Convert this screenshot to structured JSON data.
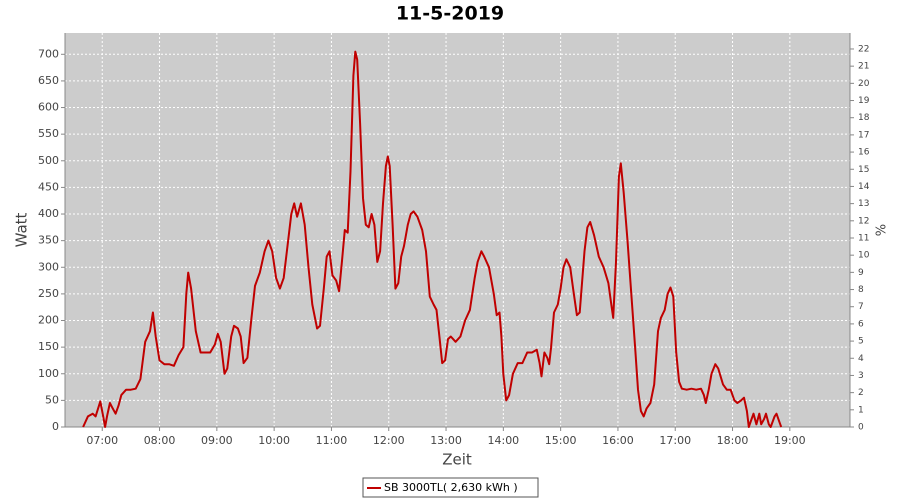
{
  "chart_data": {
    "type": "line",
    "title": "11-5-2019",
    "xlabel": "Zeit",
    "ylabel": "Watt",
    "y2label": "%",
    "x": [
      400,
      405,
      410,
      413,
      418,
      421,
      423,
      425,
      428,
      431,
      434,
      437,
      440,
      445,
      450,
      455,
      460,
      465,
      470,
      473,
      476,
      480,
      485,
      490,
      495,
      500,
      505,
      508,
      510,
      513,
      518,
      523,
      528,
      533,
      538,
      541,
      544,
      548,
      551,
      555,
      558,
      562,
      565,
      568,
      572,
      576,
      580,
      585,
      590,
      594,
      598,
      602,
      606,
      610,
      614,
      618,
      621,
      624,
      628,
      632,
      636,
      640,
      645,
      648,
      652,
      655,
      658,
      661,
      665,
      668,
      671,
      674,
      677,
      680,
      683,
      685,
      687,
      690,
      693,
      696,
      699,
      702,
      705,
      708,
      711,
      714,
      717,
      719,
      721,
      724,
      727,
      730,
      733,
      736,
      740,
      743,
      746,
      750,
      755,
      759,
      763,
      767,
      770,
      773,
      776,
      779,
      782,
      785,
      790,
      795,
      800,
      805,
      810,
      813,
      817,
      820,
      825,
      830,
      833,
      836,
      838,
      840,
      843,
      846,
      850,
      855,
      860,
      865,
      870,
      875,
      878,
      880,
      883,
      886,
      888,
      890,
      893,
      897,
      900,
      903,
      906,
      910,
      913,
      917,
      920,
      925,
      928,
      931,
      935,
      940,
      945,
      950,
      953,
      955,
      958,
      961,
      963,
      966,
      970,
      974,
      978,
      981,
      984,
      987,
      990,
      994,
      998,
      1002,
      1005,
      1009,
      1012,
      1015,
      1018,
      1021,
      1024,
      1027,
      1032,
      1037,
      1042,
      1047,
      1050,
      1052,
      1055,
      1058,
      1062,
      1065,
      1070,
      1074,
      1078,
      1082,
      1085,
      1089,
      1092,
      1095,
      1097,
      1100,
      1102,
      1105,
      1108,
      1110,
      1113,
      1115,
      1118,
      1120,
      1124,
      1126,
      1129,
      1131
    ],
    "series": [
      {
        "name": "SB 3000TL( 2,630 kWh )",
        "color": "#c00000",
        "values": [
          0,
          20,
          25,
          20,
          48,
          20,
          0,
          20,
          45,
          35,
          25,
          40,
          60,
          70,
          70,
          72,
          90,
          160,
          180,
          215,
          170,
          125,
          118,
          118,
          115,
          135,
          150,
          250,
          290,
          260,
          180,
          140,
          140,
          140,
          155,
          175,
          160,
          100,
          110,
          170,
          190,
          185,
          170,
          120,
          130,
          200,
          265,
          290,
          330,
          350,
          330,
          280,
          260,
          280,
          340,
          400,
          420,
          395,
          420,
          380,
          300,
          230,
          185,
          190,
          260,
          320,
          330,
          285,
          275,
          255,
          310,
          370,
          365,
          480,
          660,
          705,
          690,
          570,
          430,
          380,
          375,
          400,
          380,
          310,
          330,
          420,
          490,
          508,
          490,
          380,
          260,
          270,
          320,
          340,
          380,
          400,
          405,
          395,
          370,
          330,
          245,
          230,
          220,
          170,
          120,
          125,
          165,
          170,
          160,
          170,
          200,
          220,
          280,
          310,
          330,
          320,
          300,
          250,
          210,
          215,
          170,
          100,
          50,
          60,
          100,
          120,
          120,
          140,
          140,
          145,
          120,
          95,
          140,
          130,
          118,
          150,
          215,
          230,
          260,
          300,
          315,
          300,
          260,
          210,
          215,
          330,
          375,
          385,
          360,
          320,
          300,
          270,
          230,
          205,
          310,
          470,
          495,
          440,
          350,
          250,
          150,
          70,
          30,
          20,
          35,
          45,
          80,
          180,
          205,
          220,
          250,
          262,
          245,
          140,
          85,
          72,
          70,
          72,
          70,
          72,
          60,
          45,
          70,
          100,
          118,
          110,
          80,
          70,
          70,
          50,
          45,
          50,
          55,
          30,
          0,
          15,
          25,
          5,
          25,
          5,
          15,
          25,
          5,
          0,
          20,
          25,
          10,
          0
        ]
      }
    ],
    "xlim": [
      381,
      1203
    ],
    "xticks": [
      {
        "value": 420,
        "label": "07:00"
      },
      {
        "value": 480,
        "label": "08:00"
      },
      {
        "value": 540,
        "label": "09:00"
      },
      {
        "value": 600,
        "label": "10:00"
      },
      {
        "value": 660,
        "label": "11:00"
      },
      {
        "value": 720,
        "label": "12:00"
      },
      {
        "value": 780,
        "label": "13:00"
      },
      {
        "value": 840,
        "label": "14:00"
      },
      {
        "value": 900,
        "label": "15:00"
      },
      {
        "value": 960,
        "label": "16:00"
      },
      {
        "value": 1020,
        "label": "17:00"
      },
      {
        "value": 1080,
        "label": "18:00"
      },
      {
        "value": 1140,
        "label": "19:00"
      }
    ],
    "ylim": [
      0,
      740
    ],
    "yticks": [
      0,
      50,
      100,
      150,
      200,
      250,
      300,
      350,
      400,
      450,
      500,
      550,
      600,
      650,
      700
    ],
    "y2lim": [
      0,
      22.93
    ],
    "y2ticks": [
      0,
      1,
      2,
      3,
      4,
      5,
      6,
      7,
      8,
      9,
      10,
      11,
      12,
      13,
      14,
      15,
      16,
      17,
      18,
      19,
      20,
      21,
      22
    ],
    "grid": true
  }
}
